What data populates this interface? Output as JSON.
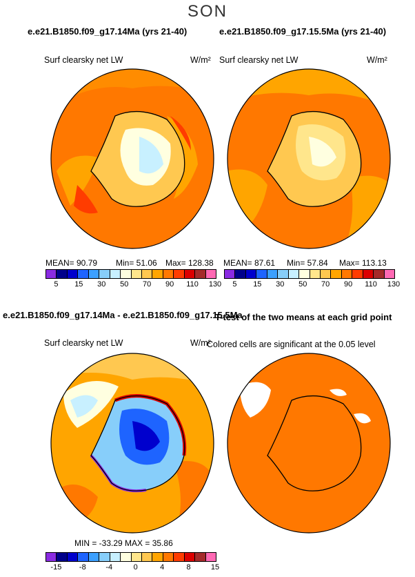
{
  "season": "SON",
  "panels": {
    "left_title": "e.e21.B1850.f09_g17.14Ma (yrs 21-40)",
    "right_title": "e.e21.B1850.f09_g17.15.5Ma (yrs 21-40)",
    "variable": "Surf clearsky net LW",
    "units": "W/m²",
    "left_stats": {
      "mean": "MEAN=   90.79",
      "min": "Min=   51.06",
      "max": "Max=  128.38"
    },
    "right_stats": {
      "mean": "MEAN=   87.61",
      "min": "Min=   57.84",
      "max": "Max=  113.13"
    },
    "colorbar_colors": [
      "#8a2be2",
      "#00008b",
      "#0000cd",
      "#1e64ff",
      "#3ca0ff",
      "#87cefa",
      "#c8f0ff",
      "#ffffe0",
      "#ffe68c",
      "#ffc850",
      "#ffa500",
      "#ff7800",
      "#ff3c00",
      "#dc0000",
      "#a52a2a",
      "#ff69b4"
    ],
    "colorbar_ticks": [
      "5",
      "15",
      "30",
      "50",
      "70",
      "90",
      "110",
      "130"
    ]
  },
  "diff": {
    "title": "e.e21.B1850.f09_g17.14Ma - e.e21.B1850.f09_g17.15.5Ma",
    "variable": "Surf clearsky net LW",
    "units": "W/m²",
    "stats": "MIN = -33.29  MAX =   35.86",
    "colorbar_colors": [
      "#8a2be2",
      "#00008b",
      "#0000cd",
      "#1e64ff",
      "#3ca0ff",
      "#87cefa",
      "#c8f0ff",
      "#ffffe0",
      "#ffe68c",
      "#ffc850",
      "#ffa500",
      "#ff7800",
      "#ff3c00",
      "#dc0000",
      "#a52a2a",
      "#ff69b4"
    ],
    "colorbar_ticks": [
      "-15",
      "-8",
      "-4",
      "0",
      "4",
      "8",
      "15"
    ]
  },
  "ttest": {
    "title": "T-test of the two means at each grid point",
    "subtitle": "Colored cells are significant at the 0.05 level"
  }
}
